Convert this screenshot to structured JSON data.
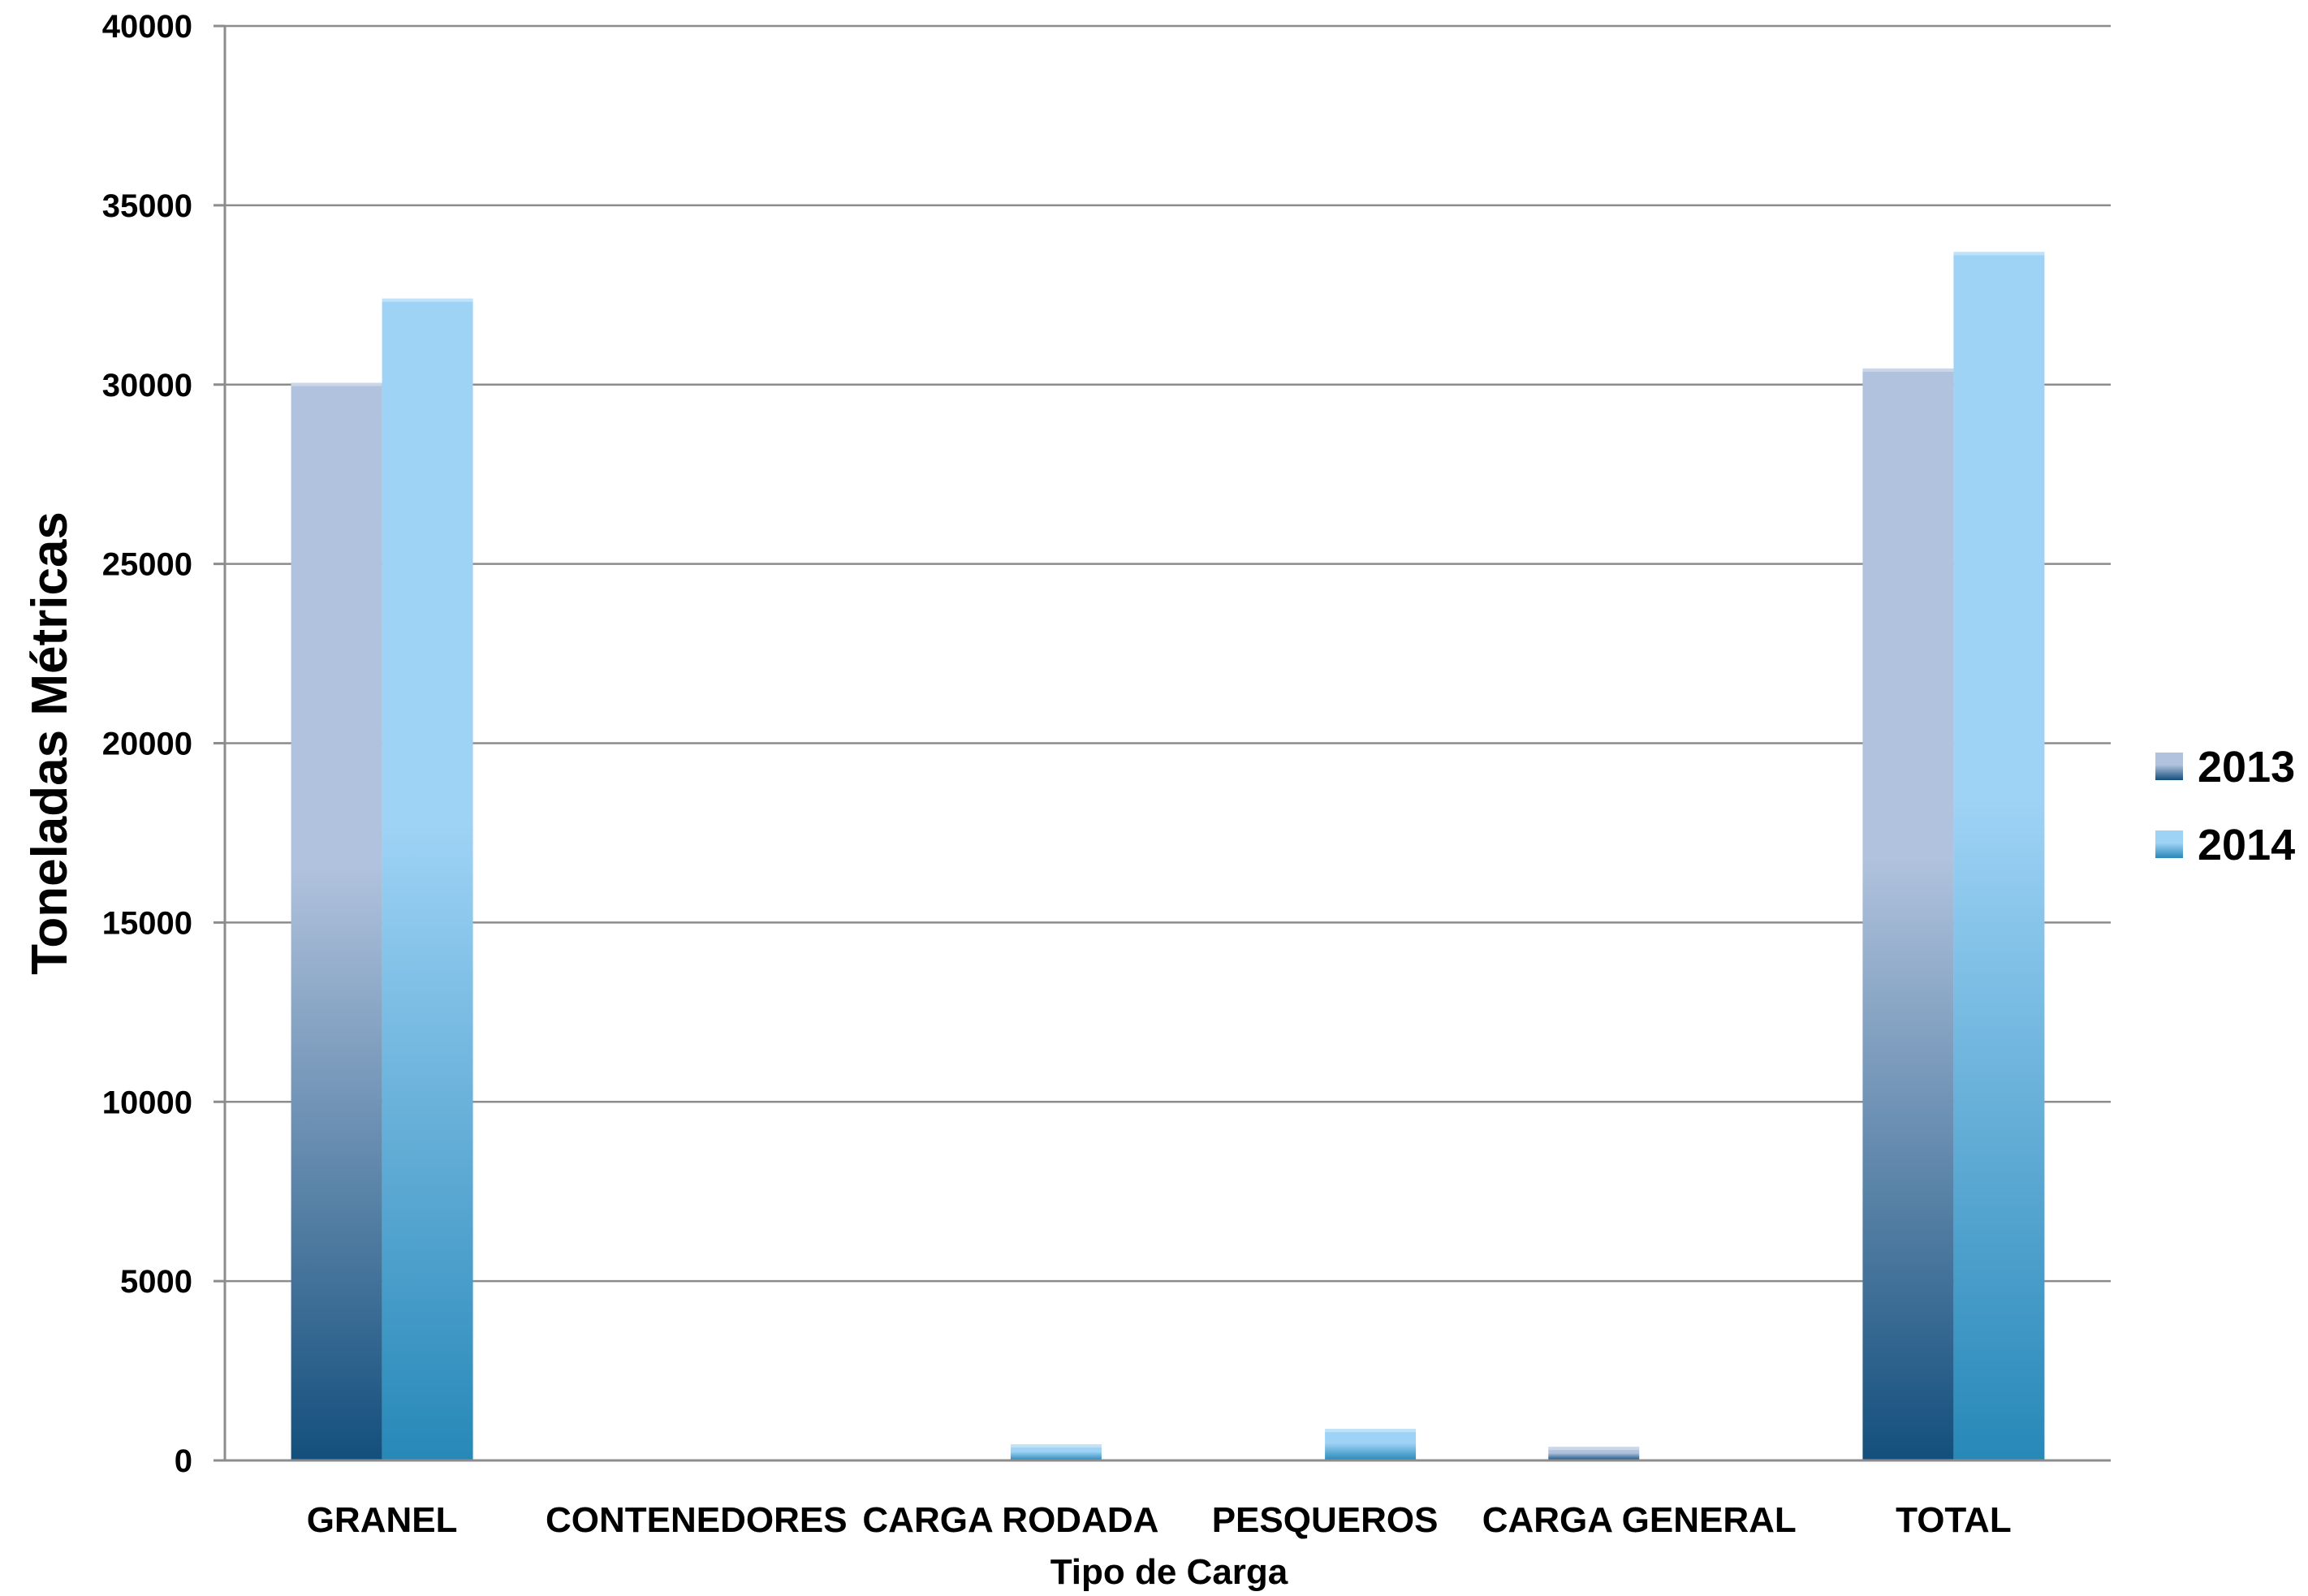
{
  "chart_data": {
    "type": "bar",
    "categories": [
      "GRANEL",
      "CONTENEDORES",
      "CARGA RODADA",
      "PESQUEROS",
      "CARGA GENERAL",
      "TOTAL"
    ],
    "series": [
      {
        "name": "2013",
        "values": [
          30050,
          0,
          0,
          0,
          380,
          30450
        ],
        "color_top": "#b0c2dd",
        "color_bottom": "#134f7c"
      },
      {
        "name": "2014",
        "values": [
          32400,
          0,
          450,
          880,
          0,
          33700
        ],
        "color_top": "#9fd3f6",
        "color_bottom": "#2788b8"
      }
    ],
    "xlabel": "Tipo de Carga",
    "ylabel": "Toneladas Métricas",
    "ylim": [
      0,
      40000
    ],
    "yticks": [
      "0",
      "5000",
      "10000",
      "15000",
      "20000",
      "25000",
      "30000",
      "35000",
      "40000"
    ],
    "grid": true,
    "legend_position": "right"
  }
}
